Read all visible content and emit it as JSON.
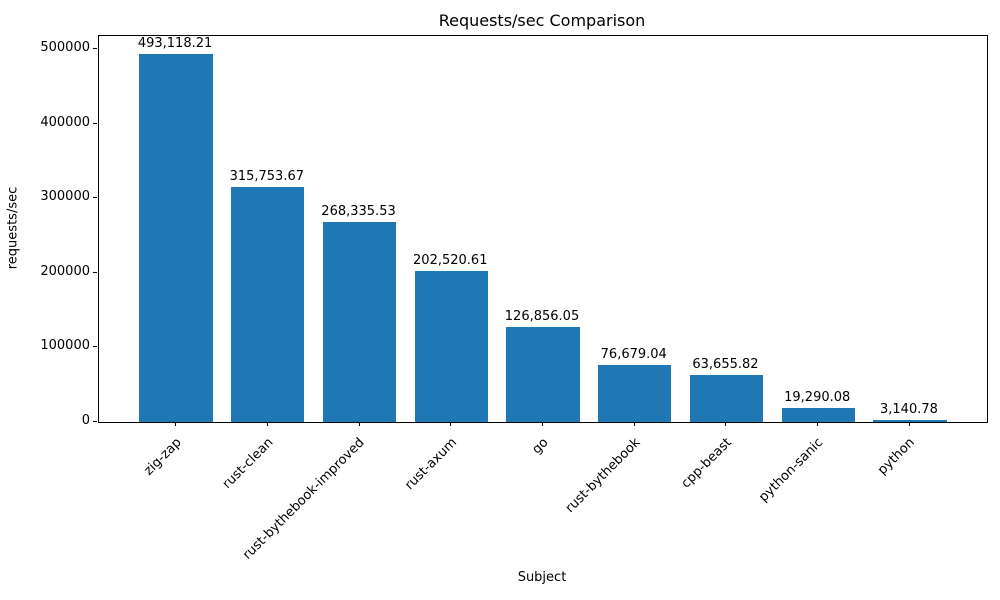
{
  "chart_data": {
    "type": "bar",
    "title": "Requests/sec Comparison",
    "xlabel": "Subject",
    "ylabel": "requests/sec",
    "categories": [
      "zig-zap",
      "rust-clean",
      "rust-bythebook-improved",
      "rust-axum",
      "go",
      "rust-bythebook",
      "cpp-beast",
      "python-sanic",
      "python"
    ],
    "values": [
      493118.21,
      315753.67,
      268335.53,
      202520.61,
      126856.05,
      76679.04,
      63655.82,
      19290.08,
      3140.78
    ],
    "value_labels": [
      "493,118.21",
      "315,753.67",
      "268,335.53",
      "202,520.61",
      "126,856.05",
      "76,679.04",
      "63,655.82",
      "19,290.08",
      "3,140.78"
    ],
    "yticks": [
      0,
      100000,
      200000,
      300000,
      400000,
      500000
    ],
    "ytick_labels": [
      "0",
      "100000",
      "200000",
      "300000",
      "400000",
      "500000"
    ],
    "ylim": [
      0,
      517774
    ],
    "bar_color": "#1f77b4",
    "grid": false,
    "legend": null,
    "xtick_rotation_deg": 45
  }
}
